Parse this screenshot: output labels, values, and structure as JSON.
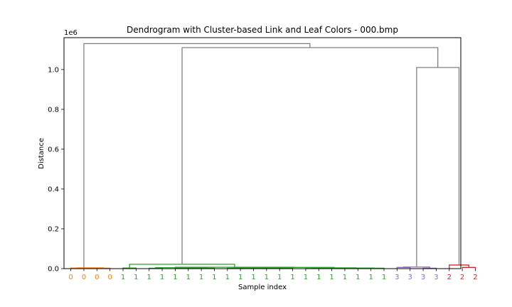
{
  "chart_data": {
    "type": "dendrogram",
    "title": "Dendrogram with Cluster-based Link and Leaf Colors - 000.bmp",
    "xlabel": "Sample index",
    "ylabel": "Distance",
    "y_offset_label": "1e6",
    "ylim": [
      0,
      1.16
    ],
    "y_ticks": [
      0.0,
      0.2,
      0.4,
      0.6,
      0.8,
      1.0
    ],
    "y_tick_labels": [
      "0.0",
      "0.2",
      "0.4",
      "0.6",
      "0.8",
      "1.0"
    ],
    "leaf_labels": [
      "0",
      "0",
      "0",
      "0",
      "1",
      "1",
      "1",
      "1",
      "1",
      "1",
      "1",
      "1",
      "1",
      "1",
      "1",
      "1",
      "1",
      "1",
      "1",
      "1",
      "1",
      "1",
      "1",
      "1",
      "1",
      "3",
      "3",
      "3",
      "3",
      "2",
      "2",
      "2"
    ],
    "cluster_colors": {
      "0": "#ff7f0e",
      "1": "#2ca02c",
      "3": "#9467bd",
      "2": "#d62728",
      "above": "#808080"
    },
    "links": [
      {
        "x": [
          0,
          0,
          1,
          1
        ],
        "y": [
          0,
          0.003,
          0.003,
          0
        ],
        "cluster": "0"
      },
      {
        "x": [
          2,
          2,
          3,
          3
        ],
        "y": [
          0,
          0.002,
          0.002,
          0
        ],
        "cluster": "0"
      },
      {
        "x": [
          0.5,
          0.5,
          2.5,
          2.5
        ],
        "y": [
          0.003,
          0.004,
          0.004,
          0.002
        ],
        "cluster": "0"
      },
      {
        "x": [
          4,
          4,
          5,
          5
        ],
        "y": [
          0,
          0.003,
          0.003,
          0
        ],
        "cluster": "1"
      },
      {
        "x": [
          6,
          6,
          7,
          7
        ],
        "y": [
          0,
          0.002,
          0.002,
          0
        ],
        "cluster": "1"
      },
      {
        "x": [
          8,
          8,
          9,
          9
        ],
        "y": [
          0,
          0.002,
          0.002,
          0
        ],
        "cluster": "1"
      },
      {
        "x": [
          10,
          10,
          11,
          11
        ],
        "y": [
          0,
          0.002,
          0.002,
          0
        ],
        "cluster": "1"
      },
      {
        "x": [
          8.5,
          8.5,
          10.5,
          10.5
        ],
        "y": [
          0.002,
          0.004,
          0.004,
          0.002
        ],
        "cluster": "1"
      },
      {
        "x": [
          6.5,
          6.5,
          9.5,
          9.5
        ],
        "y": [
          0.002,
          0.005,
          0.005,
          0.004
        ],
        "cluster": "1"
      },
      {
        "x": [
          12,
          12,
          13,
          13
        ],
        "y": [
          0,
          0.002,
          0.002,
          0
        ],
        "cluster": "1"
      },
      {
        "x": [
          14,
          14,
          15,
          15
        ],
        "y": [
          0,
          0.002,
          0.002,
          0
        ],
        "cluster": "1"
      },
      {
        "x": [
          16,
          16,
          17,
          17
        ],
        "y": [
          0,
          0.002,
          0.002,
          0
        ],
        "cluster": "1"
      },
      {
        "x": [
          14.5,
          14.5,
          16.5,
          16.5
        ],
        "y": [
          0.002,
          0.003,
          0.003,
          0.002
        ],
        "cluster": "1"
      },
      {
        "x": [
          12.5,
          12.5,
          15.5,
          15.5
        ],
        "y": [
          0.002,
          0.004,
          0.004,
          0.003
        ],
        "cluster": "1"
      },
      {
        "x": [
          18,
          18,
          19,
          19
        ],
        "y": [
          0,
          0.001,
          0.001,
          0
        ],
        "cluster": "1"
      },
      {
        "x": [
          20,
          20,
          21,
          21
        ],
        "y": [
          0,
          0.001,
          0.001,
          0
        ],
        "cluster": "1"
      },
      {
        "x": [
          22,
          22,
          23,
          23
        ],
        "y": [
          0,
          0.001,
          0.001,
          0
        ],
        "cluster": "1"
      },
      {
        "x": [
          22.5,
          22.5,
          24,
          24
        ],
        "y": [
          0.001,
          0.002,
          0.002,
          0
        ],
        "cluster": "1"
      },
      {
        "x": [
          20.5,
          20.5,
          23.25,
          23.25
        ],
        "y": [
          0.001,
          0.003,
          0.003,
          0.002
        ],
        "cluster": "1"
      },
      {
        "x": [
          18.5,
          18.5,
          21.875,
          21.875
        ],
        "y": [
          0.001,
          0.004,
          0.004,
          0.003
        ],
        "cluster": "1"
      },
      {
        "x": [
          14.0,
          14.0,
          20.1875,
          20.1875
        ],
        "y": [
          0.004,
          0.006,
          0.006,
          0.004
        ],
        "cluster": "1"
      },
      {
        "x": [
          8.0,
          8.0,
          17.09,
          17.09
        ],
        "y": [
          0.005,
          0.007,
          0.007,
          0.006
        ],
        "cluster": "1"
      },
      {
        "x": [
          4.5,
          4.5,
          12.55,
          12.55
        ],
        "y": [
          0.003,
          0.022,
          0.022,
          0.007
        ],
        "cluster": "1"
      },
      {
        "x": [
          25,
          25,
          26,
          26
        ],
        "y": [
          0,
          0.006,
          0.006,
          0
        ],
        "cluster": "3"
      },
      {
        "x": [
          27,
          27,
          28,
          28
        ],
        "y": [
          0,
          0.002,
          0.002,
          0
        ],
        "cluster": "3"
      },
      {
        "x": [
          25.5,
          25.5,
          27.5,
          27.5
        ],
        "y": [
          0.006,
          0.008,
          0.008,
          0.002
        ],
        "cluster": "3"
      },
      {
        "x": [
          30,
          30,
          31,
          31
        ],
        "y": [
          0,
          0.006,
          0.006,
          0
        ],
        "cluster": "2"
      },
      {
        "x": [
          29,
          29,
          30.5,
          30.5
        ],
        "y": [
          0,
          0.018,
          0.018,
          0.006
        ],
        "cluster": "2"
      },
      {
        "x": [
          26.5,
          26.5,
          29.75,
          29.75
        ],
        "y": [
          0.008,
          1.01,
          1.01,
          0.018
        ],
        "cluster": "above"
      },
      {
        "x": [
          8.525,
          8.525,
          28.125,
          28.125
        ],
        "y": [
          0.022,
          1.11,
          1.11,
          1.01
        ],
        "cluster": "above"
      },
      {
        "x": [
          1.0,
          1.0,
          18.325,
          18.325
        ],
        "y": [
          0.004,
          1.13,
          1.13,
          1.11
        ],
        "cluster": "above"
      }
    ]
  }
}
